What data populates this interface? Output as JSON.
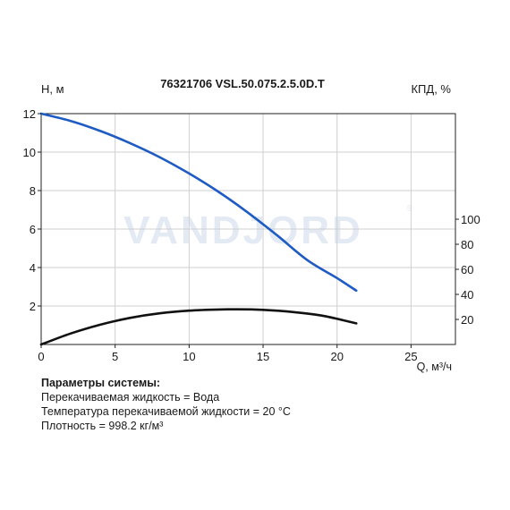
{
  "chart_data": {
    "type": "line",
    "title": "76321706 VSL.50.075.2.5.0D.T",
    "ylabel": "H, м",
    "y2label": "КПД, %",
    "xlabel": "Q, м³/ч",
    "watermark": "VANDJORD",
    "xlim": [
      0,
      28
    ],
    "ylim": [
      0,
      12
    ],
    "y2lim": [
      0,
      100
    ],
    "xticks": [
      0,
      5,
      10,
      15,
      20,
      25
    ],
    "yticks": [
      2,
      4,
      6,
      8,
      10,
      12
    ],
    "y2ticks": [
      20,
      40,
      60,
      80,
      100
    ],
    "grid": true,
    "series": [
      {
        "axis": "left",
        "color": "#1f5bc4",
        "x": [
          0,
          2,
          4,
          6,
          8,
          10,
          12,
          14,
          16,
          18,
          20,
          21.3
        ],
        "values": [
          12,
          11.62,
          11.1,
          10.47,
          9.74,
          8.89,
          7.93,
          6.84,
          5.64,
          4.38,
          3.45,
          2.8
        ]
      },
      {
        "axis": "left",
        "color": "#111111",
        "x": [
          0,
          2,
          4,
          6,
          8,
          10,
          12,
          13.3,
          15,
          17,
          19,
          21.3
        ],
        "values": [
          0,
          0.57,
          1.03,
          1.38,
          1.62,
          1.76,
          1.82,
          1.83,
          1.8,
          1.69,
          1.5,
          1.1
        ]
      }
    ]
  },
  "params": {
    "heading": "Параметры системы:",
    "lines": [
      "Перекачиваемая жидкость = Вода",
      "Температура перекачиваемой жидкости = 20 °C",
      "Плотность = 998.2 кг/м³"
    ]
  }
}
